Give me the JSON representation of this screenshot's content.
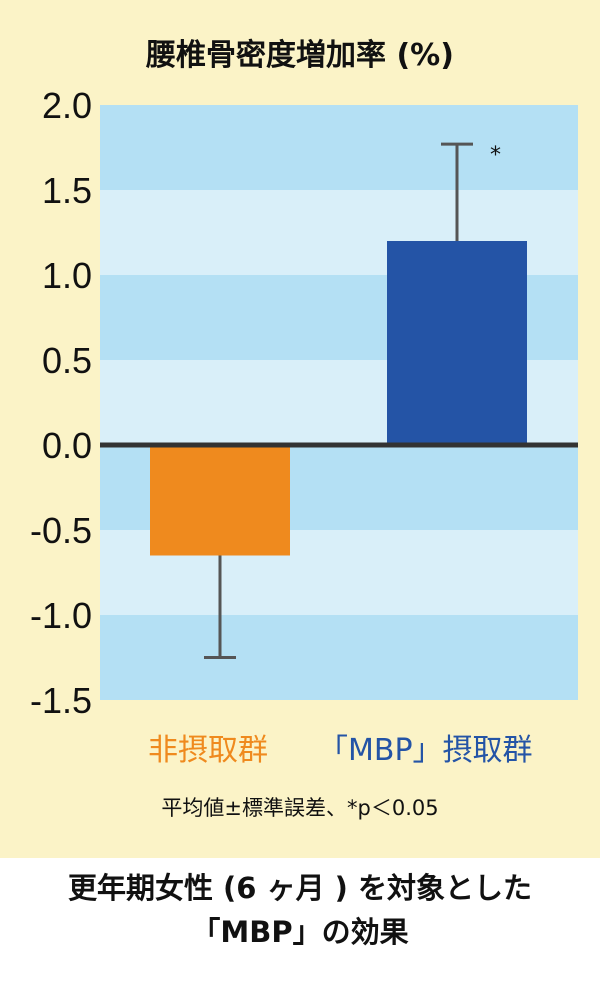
{
  "chart_data": {
    "type": "bar",
    "title": "腰椎骨密度増加率 (%)",
    "categories": [
      "非摂取群",
      "「MBP」摂取群"
    ],
    "values": [
      -0.65,
      1.2
    ],
    "errors": [
      0.6,
      0.57
    ],
    "significance": [
      "",
      "*"
    ],
    "ylim": [
      -1.5,
      2.0
    ],
    "yticks": [
      "2.0",
      "1.5",
      "1.0",
      "0.5",
      "0.0",
      "-0.5",
      "-1.0",
      "-1.5"
    ],
    "ytick_values": [
      2.0,
      1.5,
      1.0,
      0.5,
      0.0,
      -0.5,
      -1.0,
      -1.5
    ],
    "colors": [
      "#ef8a1e",
      "#2454a6"
    ],
    "note": "平均値±標準誤差、*p＜0.05"
  },
  "caption": {
    "line1": "更年期女性 (6 ヶ月 ) を対象とした",
    "line2": "「MBP」の効果"
  }
}
